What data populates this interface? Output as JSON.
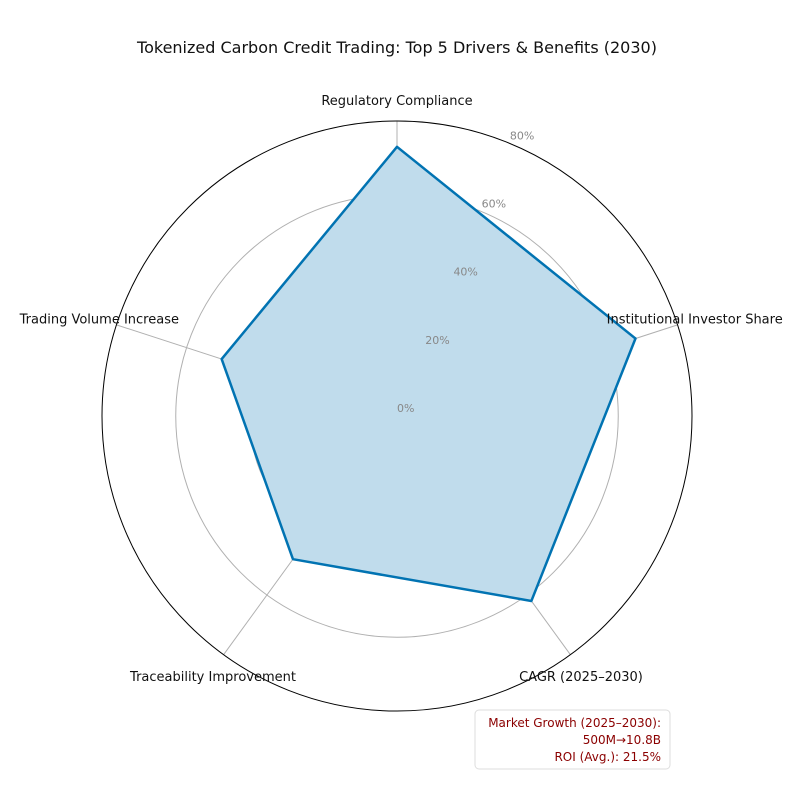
{
  "chart_data": {
    "type": "radar",
    "title": "Tokenized Carbon Credit Trading: Top 5 Drivers & Benefits (2030)",
    "categories": [
      "Regulatory Compliance",
      "Institutional Investor Share",
      "CAGR (2025–2030)",
      "Traceability Improvement",
      "Trading Volume Increase"
    ],
    "series": [
      {
        "values": [
          73,
          68,
          62,
          48,
          50
        ]
      }
    ],
    "rlim": [
      0,
      80
    ],
    "r_ticks": [
      "0%",
      "20%",
      "40%",
      "60%",
      "80%"
    ],
    "grid": true,
    "colors": {
      "line": "#0173b2",
      "fill": "#c0dcec",
      "grid": "#b0b0b0",
      "frame": "#000000"
    },
    "annotation": {
      "lines": [
        "Market Growth (2025–2030):",
        "500M→10.8B",
        "ROI (Avg.): 21.5%"
      ],
      "color": "#8b0000",
      "placement": "bottom-right"
    }
  }
}
